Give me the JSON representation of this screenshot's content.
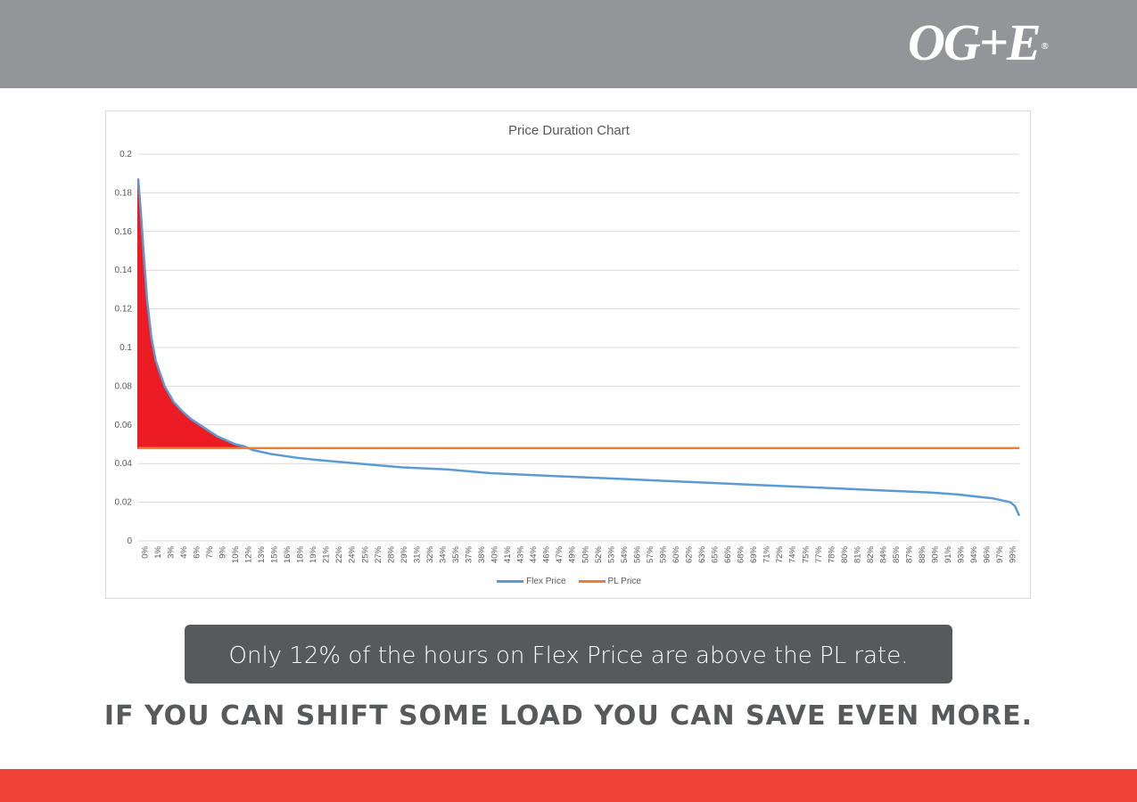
{
  "brand": {
    "logo_text": "OG+E",
    "logo_mark": "®",
    "header_color": "#939598",
    "footer_color": "#ef4136"
  },
  "callout": {
    "text": "Only 12% of the hours on Flex Price are above the PL rate.",
    "background": "#58595b"
  },
  "tagline": "IF YOU CAN SHIFT SOME LOAD YOU CAN SAVE EVEN MORE.",
  "chart_data": {
    "type": "line",
    "title": "Price Duration Chart",
    "xlabel": "",
    "ylabel": "",
    "ylim": [
      0,
      0.2
    ],
    "y_ticks": [
      "0",
      "0.02",
      "0.04",
      "0.06",
      "0.08",
      "0.1",
      "0.12",
      "0.14",
      "0.16",
      "0.18",
      "0.2"
    ],
    "x_tick_labels": [
      "0%",
      "1%",
      "3%",
      "4%",
      "6%",
      "7%",
      "9%",
      "10%",
      "12%",
      "13%",
      "15%",
      "16%",
      "18%",
      "19%",
      "21%",
      "22%",
      "24%",
      "25%",
      "27%",
      "28%",
      "29%",
      "31%",
      "32%",
      "34%",
      "35%",
      "37%",
      "38%",
      "40%",
      "41%",
      "43%",
      "44%",
      "46%",
      "47%",
      "49%",
      "50%",
      "52%",
      "53%",
      "54%",
      "56%",
      "57%",
      "59%",
      "60%",
      "62%",
      "63%",
      "65%",
      "66%",
      "68%",
      "69%",
      "71%",
      "72%",
      "74%",
      "75%",
      "77%",
      "78%",
      "80%",
      "81%",
      "82%",
      "84%",
      "85%",
      "87%",
      "88%",
      "90%",
      "91%",
      "93%",
      "94%",
      "96%",
      "97%",
      "99%"
    ],
    "grid": true,
    "legend_position": "bottom",
    "series": [
      {
        "name": "Flex Price",
        "color": "#5b9bd5",
        "x": [
          0,
          0.3,
          0.6,
          1,
          1.5,
          2,
          3,
          4,
          5,
          6,
          7,
          8,
          9,
          10,
          11,
          12,
          13,
          15,
          18,
          20,
          25,
          30,
          35,
          40,
          45,
          50,
          55,
          60,
          65,
          70,
          75,
          80,
          85,
          90,
          93,
          95,
          97,
          98,
          99,
          99.5,
          100
        ],
        "y": [
          0.187,
          0.17,
          0.15,
          0.125,
          0.105,
          0.093,
          0.08,
          0.072,
          0.067,
          0.063,
          0.06,
          0.057,
          0.054,
          0.052,
          0.05,
          0.049,
          0.047,
          0.045,
          0.043,
          0.042,
          0.04,
          0.038,
          0.037,
          0.035,
          0.034,
          0.033,
          0.032,
          0.031,
          0.03,
          0.029,
          0.028,
          0.027,
          0.026,
          0.025,
          0.024,
          0.023,
          0.022,
          0.021,
          0.02,
          0.018,
          0.013
        ]
      },
      {
        "name": "PL Price",
        "color": "#ed7d31",
        "x": [
          0,
          100
        ],
        "y": [
          0.048,
          0.048
        ]
      }
    ],
    "annotation": {
      "type": "highlighted-area",
      "description": "region where Flex Price is above PL Price",
      "color": "#ed1c24",
      "x_range": [
        0,
        12
      ]
    }
  }
}
